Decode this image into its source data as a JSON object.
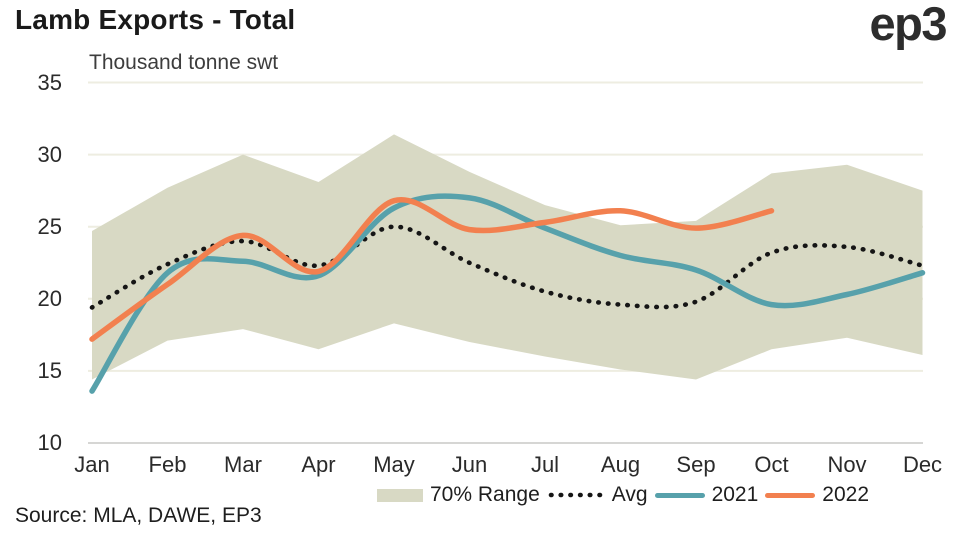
{
  "header": {
    "title": "Lamb Exports - Total",
    "logo_text": "ep3"
  },
  "footer": {
    "source": "Source: MLA, DAWE, EP3"
  },
  "chart_data": {
    "type": "line",
    "title": "Lamb Exports - Total",
    "unit_label": "Thousand tonne swt",
    "categories": [
      "Jan",
      "Feb",
      "Mar",
      "Apr",
      "May",
      "Jun",
      "Jul",
      "Aug",
      "Sep",
      "Oct",
      "Nov",
      "Dec"
    ],
    "y_ticks": [
      35,
      30,
      25,
      20,
      15,
      10
    ],
    "ylim": [
      10,
      35
    ],
    "grid": "horizontal",
    "legend_position": "bottom",
    "series": [
      {
        "name": "70% Range",
        "type": "band",
        "color": "#d8d9c4",
        "upper": [
          24.7,
          27.7,
          30.0,
          28.1,
          31.4,
          28.8,
          26.5,
          25.1,
          25.4,
          28.7,
          29.3,
          27.5
        ],
        "lower": [
          14.4,
          17.1,
          17.9,
          16.5,
          18.3,
          17.0,
          16.0,
          15.1,
          14.4,
          16.5,
          17.3,
          16.1
        ]
      },
      {
        "name": "Avg",
        "type": "line",
        "style": "dotted",
        "color": "#151515",
        "values": [
          19.4,
          22.4,
          24.0,
          22.3,
          25.0,
          22.5,
          20.5,
          19.6,
          19.8,
          23.2,
          23.6,
          22.3
        ]
      },
      {
        "name": "2021",
        "type": "line",
        "style": "solid",
        "color": "#57a1ab",
        "values": [
          13.6,
          21.8,
          22.6,
          21.6,
          26.3,
          27.0,
          24.9,
          23.0,
          22.0,
          19.6,
          20.3,
          21.8
        ]
      },
      {
        "name": "2022",
        "type": "line",
        "style": "solid",
        "color": "#f2804f",
        "values": [
          17.2,
          21.0,
          24.4,
          21.9,
          26.8,
          24.8,
          25.3,
          26.1,
          24.9,
          26.1,
          null,
          null
        ]
      }
    ],
    "axis_colors": {
      "gridline": "#eeede1",
      "baseline": "#d6d6d4"
    }
  }
}
